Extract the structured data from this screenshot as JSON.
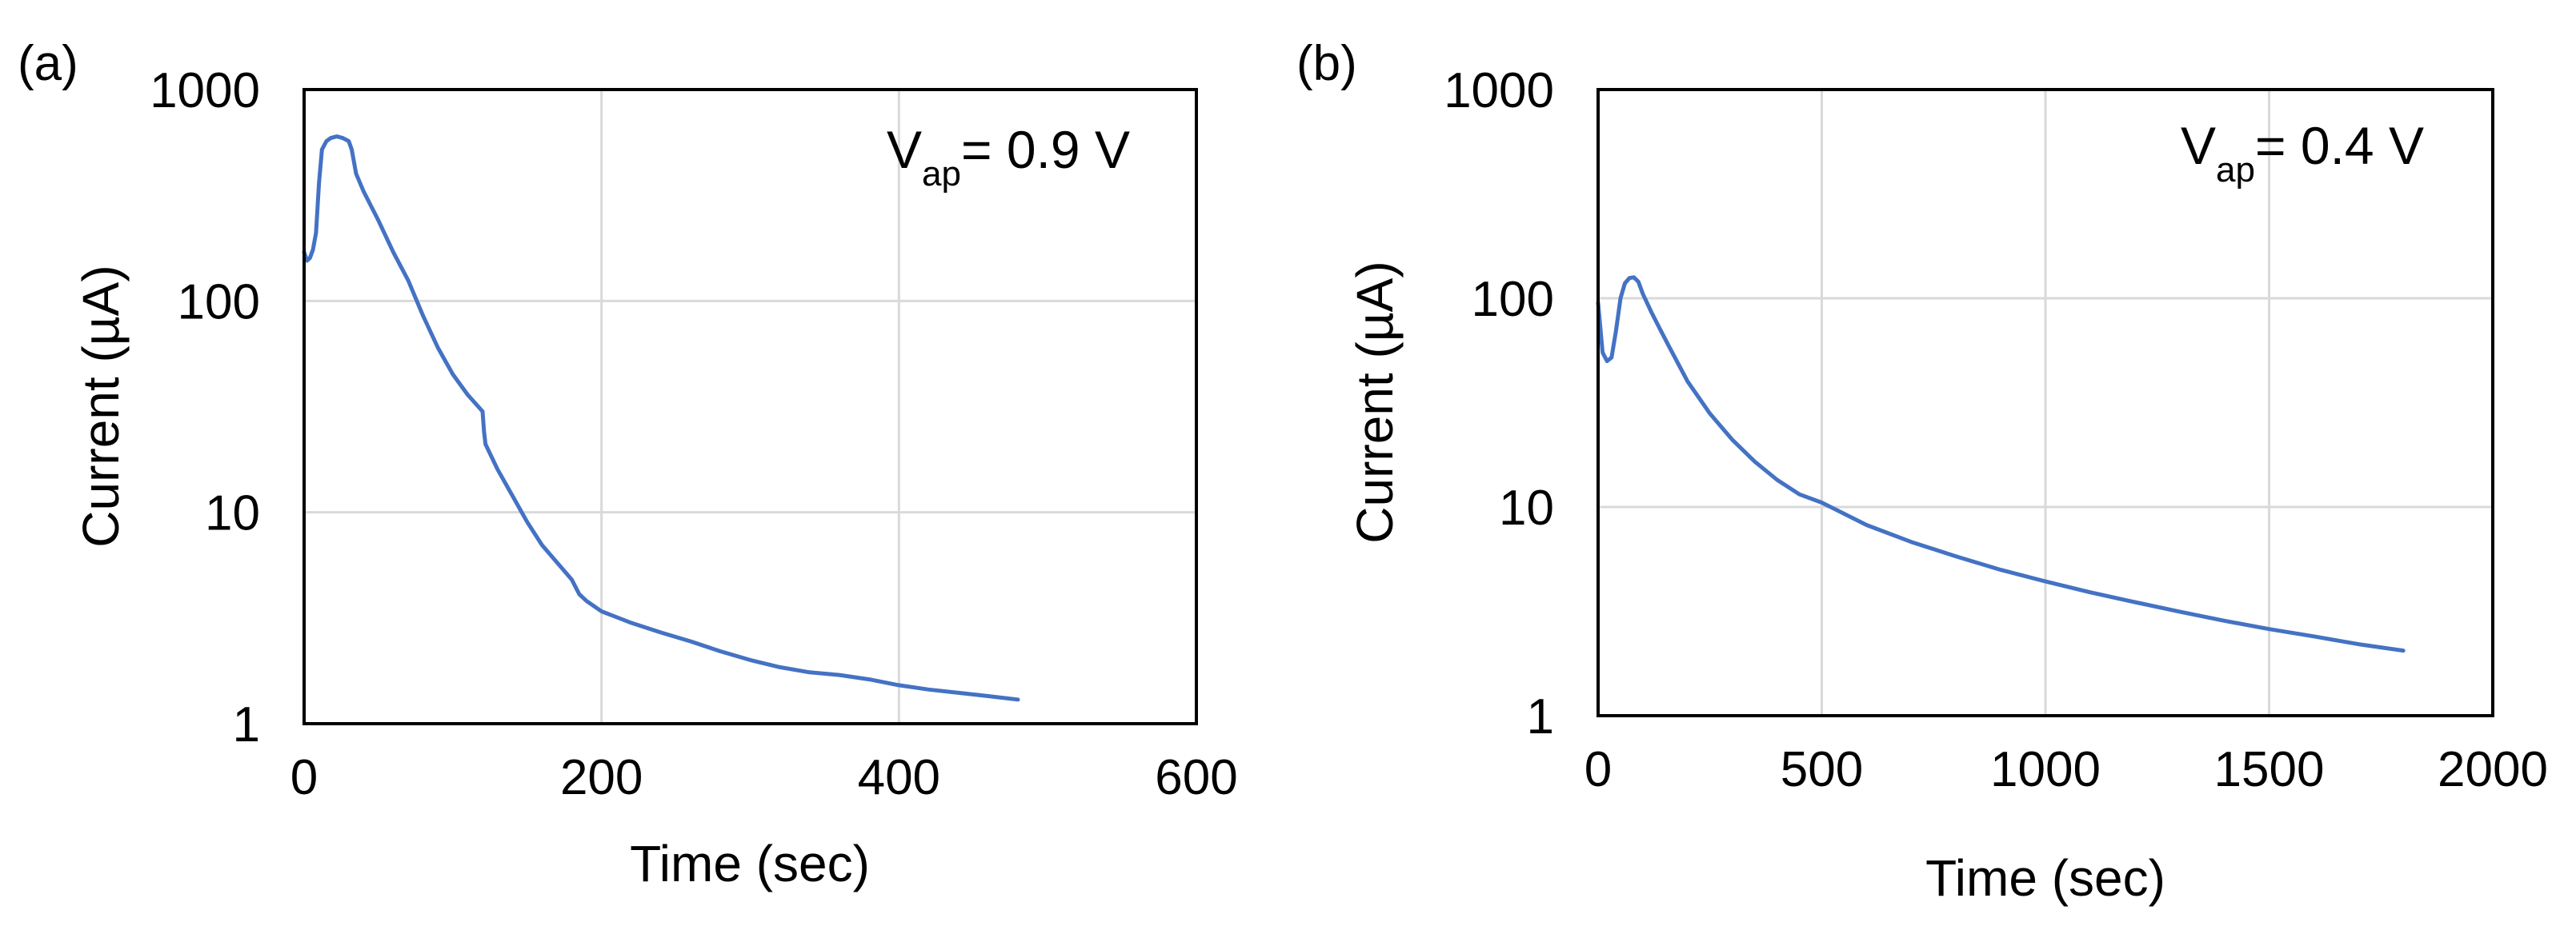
{
  "chart_data": [
    {
      "panel_label": "(a)",
      "type": "line",
      "xlabel": "Time (sec)",
      "ylabel": "Current (µA)",
      "xlim": [
        0,
        600
      ],
      "ylim": [
        1,
        1000
      ],
      "yscale": "log",
      "xticks": [
        0,
        200,
        400,
        600
      ],
      "xtick_labels": [
        "0",
        "200",
        "400",
        "600"
      ],
      "yticks": [
        1,
        10,
        100,
        1000
      ],
      "ytick_labels": [
        "1",
        "10",
        "100",
        "1000"
      ],
      "grid": true,
      "annotation": {
        "main": "V",
        "sub": "ap",
        "rest": "= 0.9 V"
      },
      "series": [
        {
          "name": "Current",
          "color": "#4472C4",
          "x": [
            0,
            2,
            4,
            6,
            8,
            10,
            12,
            15,
            18,
            22,
            26,
            30,
            32,
            35,
            40,
            50,
            60,
            70,
            80,
            90,
            100,
            110,
            120,
            121,
            122,
            130,
            140,
            150,
            160,
            170,
            180,
            185,
            190,
            200,
            220,
            240,
            260,
            280,
            300,
            320,
            340,
            360,
            380,
            400,
            420,
            440,
            460,
            480
          ],
          "y": [
            170,
            155,
            160,
            175,
            210,
            360,
            520,
            570,
            590,
            600,
            590,
            570,
            520,
            400,
            330,
            240,
            170,
            125,
            85,
            60,
            45,
            36,
            30,
            24,
            21,
            16,
            12,
            9,
            7,
            5.8,
            4.8,
            4.1,
            3.8,
            3.4,
            3.0,
            2.7,
            2.45,
            2.2,
            2.0,
            1.85,
            1.75,
            1.7,
            1.62,
            1.52,
            1.45,
            1.4,
            1.35,
            1.3
          ]
        }
      ]
    },
    {
      "panel_label": "(b)",
      "type": "line",
      "xlabel": "Time (sec)",
      "ylabel": "Current (µA)",
      "xlim": [
        0,
        2000
      ],
      "ylim": [
        1,
        1000
      ],
      "yscale": "log",
      "xticks": [
        0,
        500,
        1000,
        1500,
        2000
      ],
      "xtick_labels": [
        "0",
        "500",
        "1000",
        "1500",
        "2000"
      ],
      "yticks": [
        1,
        10,
        100,
        1000
      ],
      "ytick_labels": [
        "1",
        "10",
        "100",
        "1000"
      ],
      "grid": true,
      "annotation": {
        "main": "V",
        "sub": "ap",
        "rest": "= 0.4 V"
      },
      "series": [
        {
          "name": "Current",
          "color": "#4472C4",
          "x": [
            0,
            10,
            20,
            30,
            40,
            50,
            60,
            70,
            80,
            90,
            100,
            120,
            140,
            160,
            200,
            250,
            300,
            350,
            400,
            450,
            500,
            600,
            700,
            800,
            900,
            1000,
            1100,
            1200,
            1300,
            1400,
            1500,
            1600,
            1700,
            1800
          ],
          "y": [
            95,
            55,
            50,
            52,
            70,
            100,
            118,
            125,
            126,
            120,
            105,
            85,
            70,
            58,
            40,
            28,
            21,
            16.5,
            13.5,
            11.5,
            10.5,
            8.2,
            6.8,
            5.8,
            5.0,
            4.4,
            3.9,
            3.5,
            3.15,
            2.85,
            2.6,
            2.4,
            2.2,
            2.05
          ]
        }
      ]
    }
  ]
}
